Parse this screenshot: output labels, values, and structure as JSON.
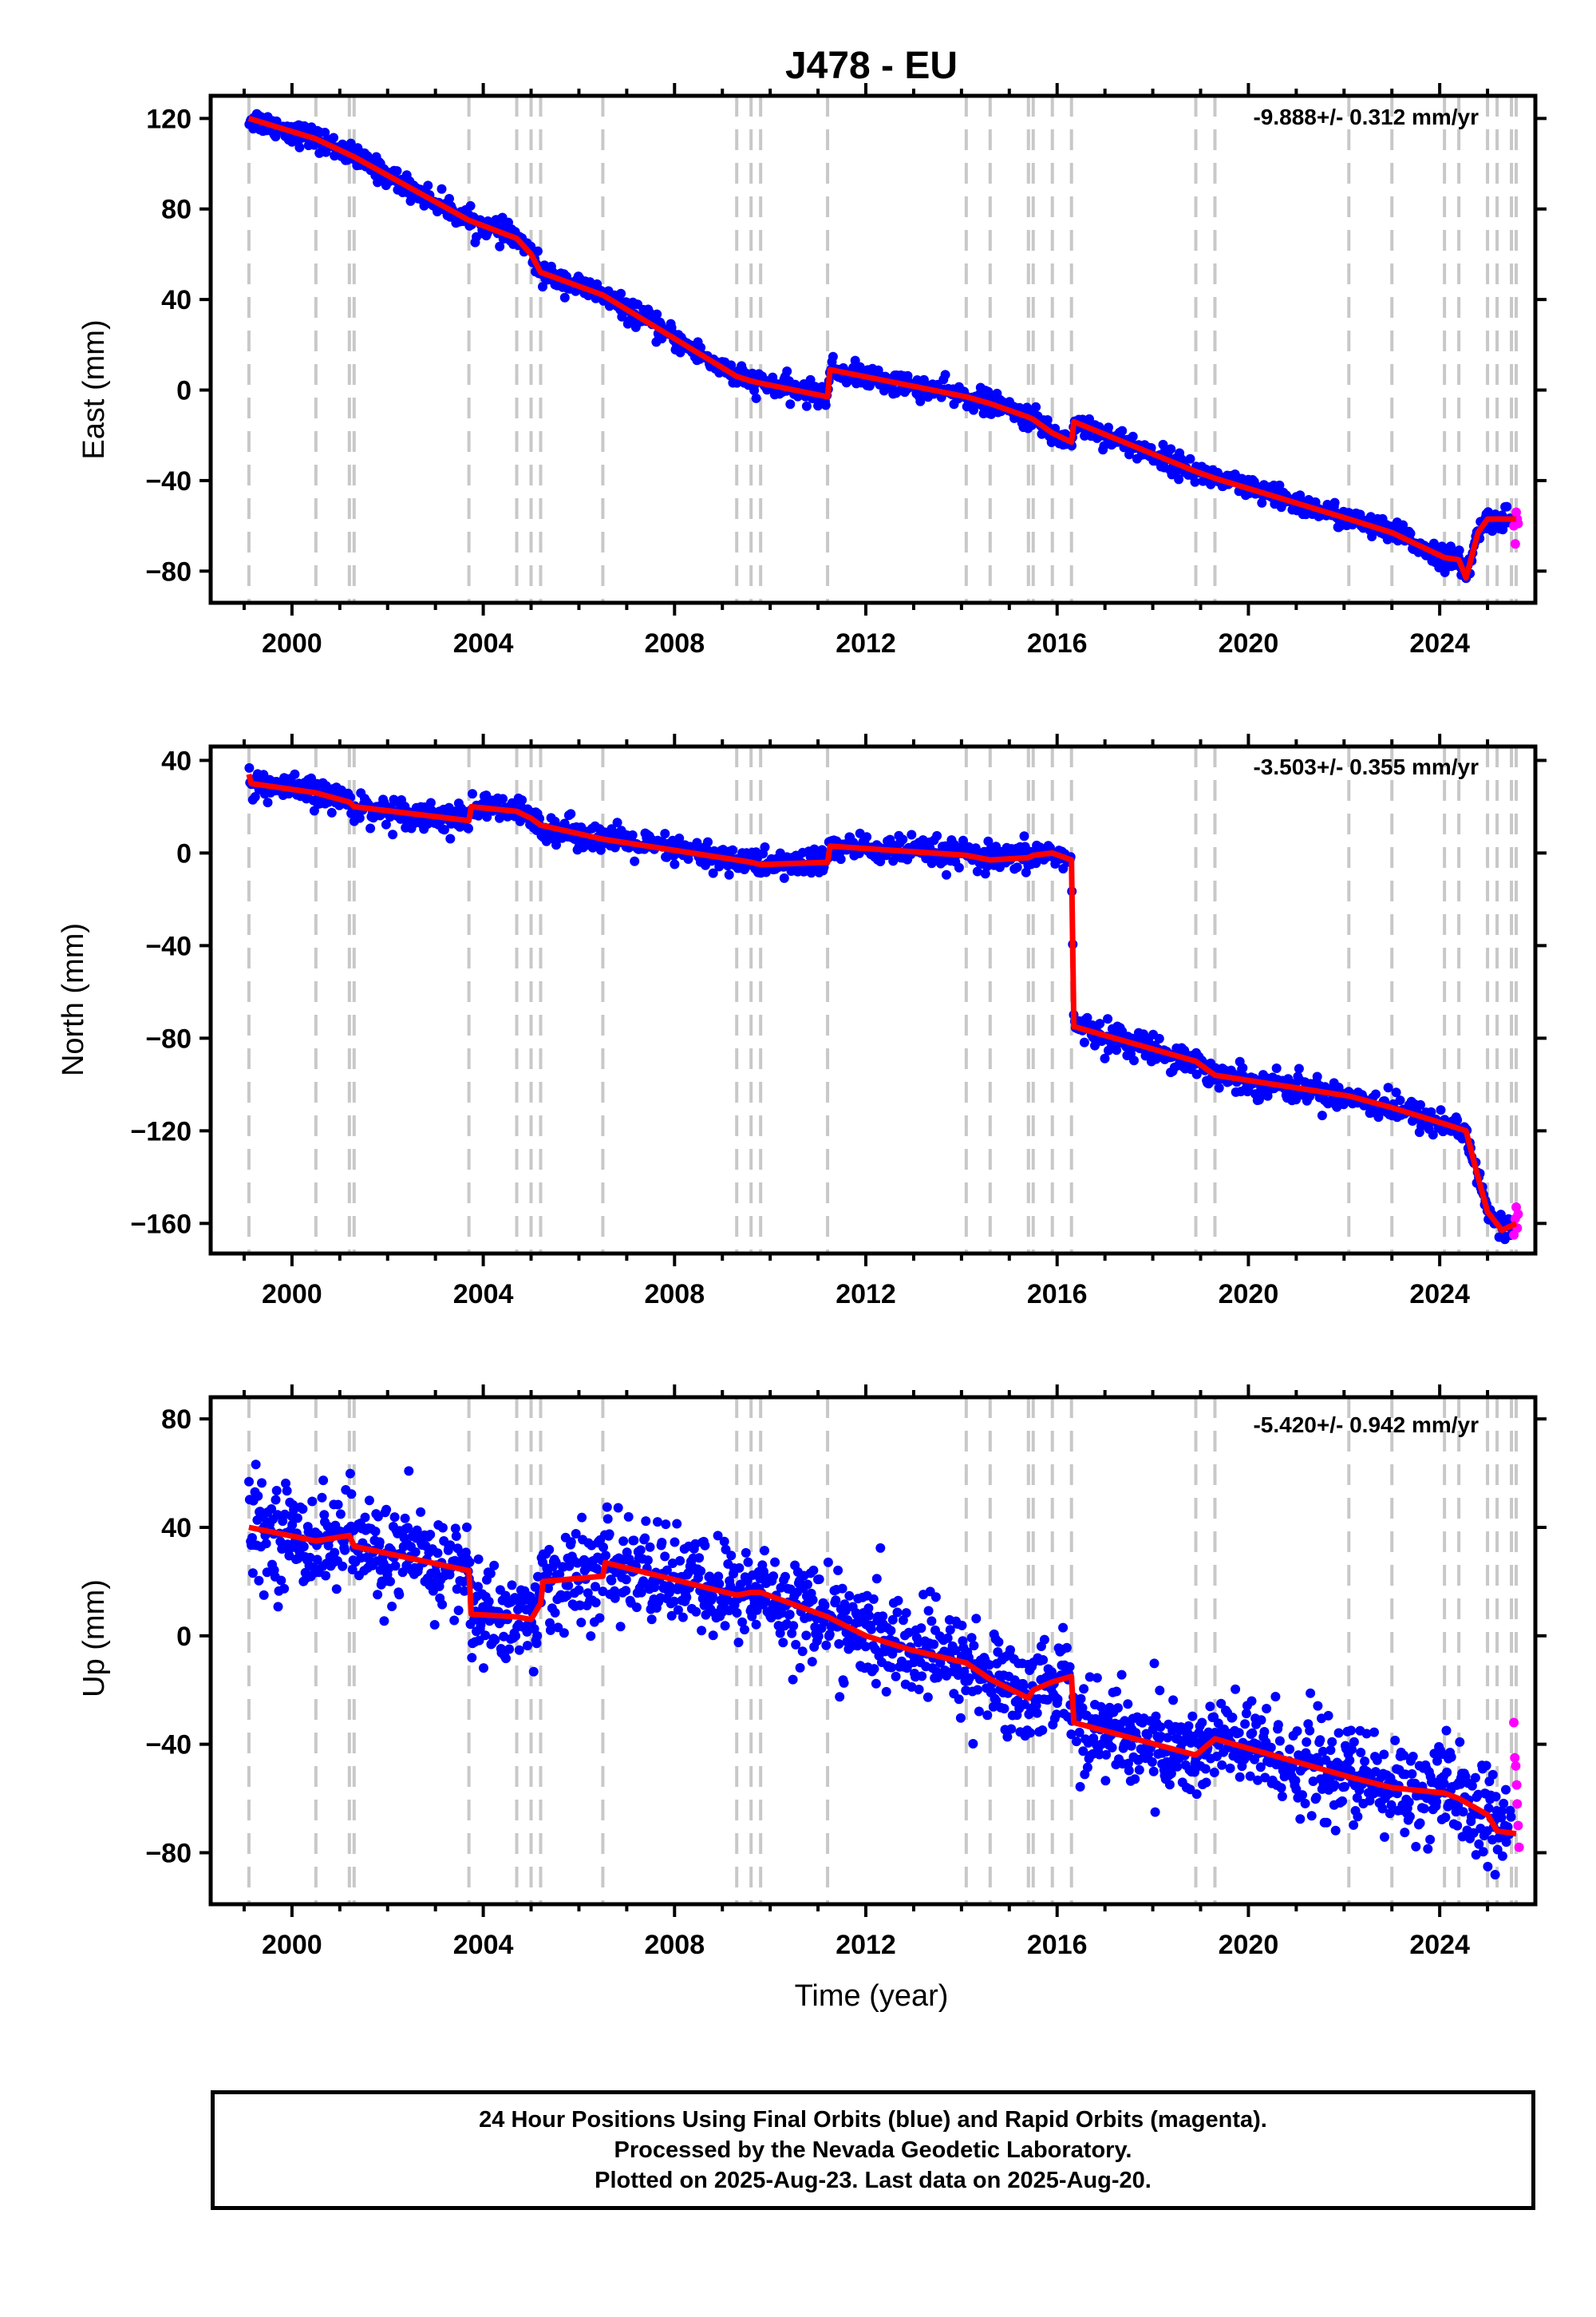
{
  "chart_data": {
    "type": "scatter",
    "title": "J478 - EU",
    "xlabel": "Time (year)",
    "xticks": [
      2000,
      2004,
      2008,
      2012,
      2016,
      2020,
      2024
    ],
    "xlim": [
      1998.3,
      2026.0
    ],
    "event_lines": [
      1999.1,
      2000.5,
      2001.2,
      2001.3,
      2003.7,
      2004.7,
      2005.0,
      2005.2,
      2006.5,
      2009.3,
      2009.6,
      2009.8,
      2011.2,
      2014.1,
      2014.6,
      2015.4,
      2015.5,
      2015.9,
      2016.3,
      2018.9,
      2019.3,
      2022.1,
      2023.0,
      2024.1,
      2024.4,
      2025.0,
      2025.2,
      2025.5,
      2025.6
    ],
    "colors": {
      "final_orbits": "#0000ff",
      "rapid_orbits": "#ff00ff",
      "model": "#ff0000",
      "event_lines": "#c8c8c8"
    },
    "panels": [
      {
        "id": "east",
        "ylabel": "East (mm)",
        "rate_text": "-9.888+/- 0.312 mm/yr",
        "ylim": [
          -94,
          130
        ],
        "yticks": [
          120,
          80,
          40,
          0,
          -40,
          -80
        ],
        "yticklabels": [
          "120",
          "80",
          "40",
          "0",
          "−40",
          "−80"
        ],
        "scatter_noise_mm": 2.5,
        "model_knots": [
          [
            1999.1,
            120
          ],
          [
            2000.5,
            111
          ],
          [
            2001.2,
            104
          ],
          [
            2001.3,
            103
          ],
          [
            2003.7,
            75
          ],
          [
            2004.7,
            67
          ],
          [
            2005.0,
            60
          ],
          [
            2005.2,
            52
          ],
          [
            2006.5,
            42
          ],
          [
            2009.3,
            6
          ],
          [
            2009.6,
            4
          ],
          [
            2009.8,
            3
          ],
          [
            2011.2,
            -3
          ],
          [
            2011.25,
            9
          ],
          [
            2014.1,
            -3
          ],
          [
            2014.6,
            -6
          ],
          [
            2015.4,
            -12
          ],
          [
            2015.5,
            -13
          ],
          [
            2015.9,
            -19
          ],
          [
            2016.3,
            -23
          ],
          [
            2016.35,
            -14
          ],
          [
            2018.9,
            -36
          ],
          [
            2019.3,
            -39
          ],
          [
            2022.1,
            -57
          ],
          [
            2023.0,
            -63
          ],
          [
            2024.1,
            -74
          ],
          [
            2024.4,
            -75
          ],
          [
            2024.55,
            -83
          ],
          [
            2024.8,
            -63
          ],
          [
            2025.0,
            -57
          ],
          [
            2025.6,
            -57
          ]
        ],
        "rapid_points": [
          [
            2025.55,
            -60
          ],
          [
            2025.58,
            -68
          ],
          [
            2025.6,
            -54
          ],
          [
            2025.62,
            -57
          ],
          [
            2025.64,
            -59
          ]
        ]
      },
      {
        "id": "north",
        "ylabel": "North (mm)",
        "rate_text": "-3.503+/- 0.355 mm/yr",
        "ylim": [
          -173,
          46
        ],
        "yticks": [
          40,
          0,
          -40,
          -80,
          -120,
          -160
        ],
        "yticklabels": [
          "40",
          "0",
          "−40",
          "−80",
          "−120",
          "−160"
        ],
        "scatter_noise_mm": 3.0,
        "model_knots": [
          [
            1999.1,
            34
          ],
          [
            1999.15,
            30
          ],
          [
            2000.5,
            26
          ],
          [
            2001.2,
            22
          ],
          [
            2001.3,
            20
          ],
          [
            2003.7,
            14
          ],
          [
            2003.75,
            20
          ],
          [
            2004.7,
            18
          ],
          [
            2005.0,
            15
          ],
          [
            2005.2,
            12
          ],
          [
            2006.5,
            6
          ],
          [
            2009.3,
            -3
          ],
          [
            2009.6,
            -4
          ],
          [
            2009.8,
            -5
          ],
          [
            2011.2,
            -4
          ],
          [
            2011.25,
            3
          ],
          [
            2014.1,
            -1
          ],
          [
            2014.6,
            -3
          ],
          [
            2015.4,
            -2
          ],
          [
            2015.5,
            -1
          ],
          [
            2015.9,
            0
          ],
          [
            2016.3,
            -3
          ],
          [
            2016.35,
            -75
          ],
          [
            2018.9,
            -90
          ],
          [
            2019.3,
            -96
          ],
          [
            2022.1,
            -105
          ],
          [
            2023.0,
            -110
          ],
          [
            2024.1,
            -117
          ],
          [
            2024.4,
            -119
          ],
          [
            2024.55,
            -120
          ],
          [
            2024.8,
            -140
          ],
          [
            2025.0,
            -155
          ],
          [
            2025.3,
            -163
          ],
          [
            2025.6,
            -160
          ]
        ],
        "rapid_points": [
          [
            2025.55,
            -165
          ],
          [
            2025.58,
            -158
          ],
          [
            2025.6,
            -153
          ],
          [
            2025.62,
            -162
          ],
          [
            2025.64,
            -156
          ]
        ]
      },
      {
        "id": "up",
        "ylabel": "Up (mm)",
        "rate_text": "-5.420+/- 0.942 mm/yr",
        "ylim": [
          -99,
          88
        ],
        "yticks": [
          80,
          40,
          0,
          -40,
          -80
        ],
        "yticklabels": [
          "80",
          "40",
          "0",
          "−40",
          "−80"
        ],
        "scatter_noise_mm": 9.0,
        "model_knots": [
          [
            1999.1,
            40
          ],
          [
            2000.5,
            35
          ],
          [
            2001.2,
            37
          ],
          [
            2001.3,
            33
          ],
          [
            2003.7,
            24
          ],
          [
            2003.75,
            8
          ],
          [
            2004.7,
            7
          ],
          [
            2005.0,
            6
          ],
          [
            2005.2,
            12
          ],
          [
            2005.25,
            20
          ],
          [
            2006.5,
            22
          ],
          [
            2006.55,
            27
          ],
          [
            2009.3,
            15
          ],
          [
            2009.6,
            16
          ],
          [
            2009.8,
            16
          ],
          [
            2011.2,
            7
          ],
          [
            2012.0,
            0
          ],
          [
            2012.9,
            -5
          ],
          [
            2014.1,
            -10
          ],
          [
            2014.6,
            -16
          ],
          [
            2015.4,
            -23
          ],
          [
            2015.5,
            -20
          ],
          [
            2015.9,
            -17
          ],
          [
            2016.3,
            -15
          ],
          [
            2016.35,
            -32
          ],
          [
            2018.9,
            -44
          ],
          [
            2019.3,
            -38
          ],
          [
            2022.1,
            -52
          ],
          [
            2023.0,
            -56
          ],
          [
            2024.1,
            -58
          ],
          [
            2024.4,
            -60
          ],
          [
            2025.0,
            -66
          ],
          [
            2025.2,
            -72
          ],
          [
            2025.6,
            -73
          ]
        ],
        "rapid_points": [
          [
            2025.55,
            -32
          ],
          [
            2025.57,
            -45
          ],
          [
            2025.59,
            -48
          ],
          [
            2025.61,
            -55
          ],
          [
            2025.62,
            -62
          ],
          [
            2025.64,
            -70
          ],
          [
            2025.66,
            -78
          ]
        ]
      }
    ]
  },
  "footer": {
    "line1": "24 Hour Positions Using Final Orbits (blue) and Rapid Orbits (magenta).",
    "line2": "Processed by the Nevada Geodetic Laboratory.",
    "line3": "Plotted on 2025-Aug-23. Last data on 2025-Aug-20."
  }
}
